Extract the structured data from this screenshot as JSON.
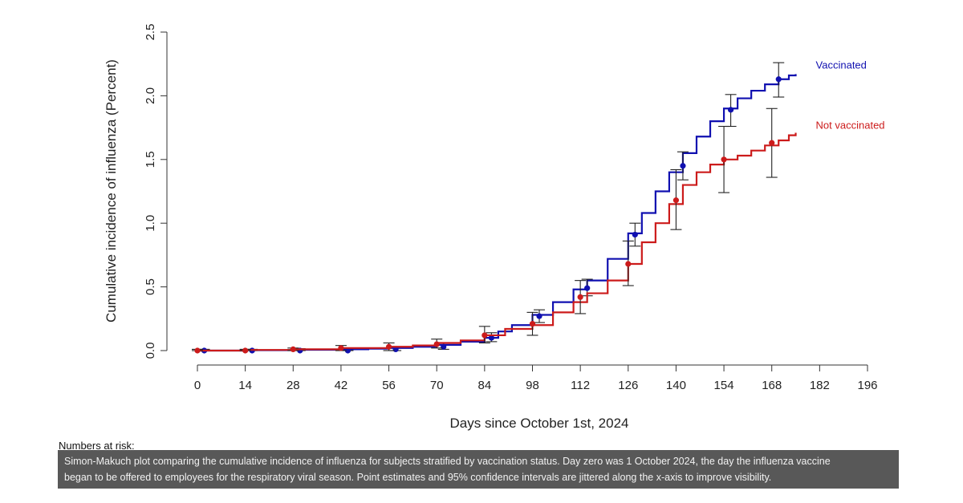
{
  "chart_data": {
    "type": "line",
    "title": "",
    "xlabel": "Days since October 1st, 2024",
    "ylabel": "Cumulative incidence of influenza (Percent)",
    "xlim": [
      0,
      196
    ],
    "ylim": [
      0,
      2.5
    ],
    "x_ticks": [
      "0",
      "14",
      "28",
      "42",
      "56",
      "70",
      "84",
      "98",
      "112",
      "126",
      "140",
      "154",
      "168",
      "182",
      "196"
    ],
    "y_ticks": [
      "0.0",
      "0.5",
      "1.0",
      "1.5",
      "2.0",
      "2.5"
    ],
    "grid": false,
    "legend": "direct labels at right end of lines",
    "series": [
      {
        "name": "Vaccinated",
        "color": "#1010b0",
        "step": true,
        "x": [
          0,
          14,
          28,
          42,
          50,
          56,
          63,
          70,
          77,
          84,
          88,
          92,
          98,
          104,
          110,
          114,
          120,
          126,
          130,
          134,
          138,
          142,
          146,
          150,
          154,
          158,
          162,
          166,
          170,
          173,
          175
        ],
        "y": [
          0,
          0.003,
          0.006,
          0.01,
          0.015,
          0.02,
          0.03,
          0.045,
          0.07,
          0.1,
          0.15,
          0.2,
          0.28,
          0.38,
          0.48,
          0.55,
          0.72,
          0.92,
          1.08,
          1.25,
          1.4,
          1.55,
          1.68,
          1.8,
          1.9,
          1.98,
          2.04,
          2.09,
          2.13,
          2.16,
          2.17
        ],
        "points": [
          {
            "x": 2,
            "y": 0.0,
            "lo": 0.0,
            "hi": 0.01
          },
          {
            "x": 16,
            "y": 0.0,
            "lo": 0.0,
            "hi": 0.01
          },
          {
            "x": 30,
            "y": 0.0,
            "lo": 0.0,
            "hi": 0.015
          },
          {
            "x": 44,
            "y": 0.0,
            "lo": 0.0,
            "hi": 0.02
          },
          {
            "x": 58,
            "y": 0.01,
            "lo": 0.0,
            "hi": 0.03
          },
          {
            "x": 72,
            "y": 0.03,
            "lo": 0.01,
            "hi": 0.06
          },
          {
            "x": 86,
            "y": 0.1,
            "lo": 0.07,
            "hi": 0.14
          },
          {
            "x": 100,
            "y": 0.27,
            "lo": 0.22,
            "hi": 0.32
          },
          {
            "x": 114,
            "y": 0.49,
            "lo": 0.43,
            "hi": 0.56
          },
          {
            "x": 128,
            "y": 0.91,
            "lo": 0.82,
            "hi": 1.0
          },
          {
            "x": 142,
            "y": 1.45,
            "lo": 1.34,
            "hi": 1.56
          },
          {
            "x": 156,
            "y": 1.89,
            "lo": 1.76,
            "hi": 2.01
          },
          {
            "x": 170,
            "y": 2.13,
            "lo": 1.99,
            "hi": 2.26
          }
        ]
      },
      {
        "name": "Not vaccinated",
        "color": "#cc1b1b",
        "step": true,
        "x": [
          0,
          14,
          28,
          42,
          56,
          63,
          70,
          77,
          84,
          90,
          98,
          104,
          110,
          114,
          120,
          126,
          130,
          134,
          138,
          142,
          146,
          150,
          154,
          158,
          162,
          166,
          170,
          173,
          175
        ],
        "y": [
          0,
          0.005,
          0.01,
          0.02,
          0.03,
          0.04,
          0.06,
          0.08,
          0.12,
          0.17,
          0.2,
          0.3,
          0.38,
          0.45,
          0.55,
          0.68,
          0.85,
          1.0,
          1.15,
          1.3,
          1.4,
          1.46,
          1.5,
          1.53,
          1.57,
          1.61,
          1.65,
          1.69,
          1.71
        ],
        "points": [
          {
            "x": 0,
            "y": 0.0,
            "lo": 0.0,
            "hi": 0.01
          },
          {
            "x": 14,
            "y": 0.0,
            "lo": 0.0,
            "hi": 0.01
          },
          {
            "x": 28,
            "y": 0.01,
            "lo": 0.0,
            "hi": 0.02
          },
          {
            "x": 42,
            "y": 0.02,
            "lo": 0.0,
            "hi": 0.04
          },
          {
            "x": 56,
            "y": 0.03,
            "lo": 0.0,
            "hi": 0.06
          },
          {
            "x": 70,
            "y": 0.05,
            "lo": 0.02,
            "hi": 0.09
          },
          {
            "x": 84,
            "y": 0.12,
            "lo": 0.06,
            "hi": 0.19
          },
          {
            "x": 98,
            "y": 0.21,
            "lo": 0.12,
            "hi": 0.3
          },
          {
            "x": 112,
            "y": 0.42,
            "lo": 0.29,
            "hi": 0.55
          },
          {
            "x": 126,
            "y": 0.68,
            "lo": 0.51,
            "hi": 0.86
          },
          {
            "x": 140,
            "y": 1.18,
            "lo": 0.95,
            "hi": 1.42
          },
          {
            "x": 154,
            "y": 1.5,
            "lo": 1.24,
            "hi": 1.76
          },
          {
            "x": 168,
            "y": 1.63,
            "lo": 1.36,
            "hi": 1.9
          }
        ]
      }
    ]
  },
  "page": {
    "risk_title": "Numbers at risk:",
    "caption_line1": "Simon-Makuch plot comparing the cumulative incidence of influenza for subjects stratified by vaccination status. Day zero was 1 October 2024, the day the influenza vaccine",
    "caption_line2": "began to be offered to employees for the respiratory viral season. Point estimates and 95% confidence intervals are jittered along the x-axis to improve visibility."
  }
}
